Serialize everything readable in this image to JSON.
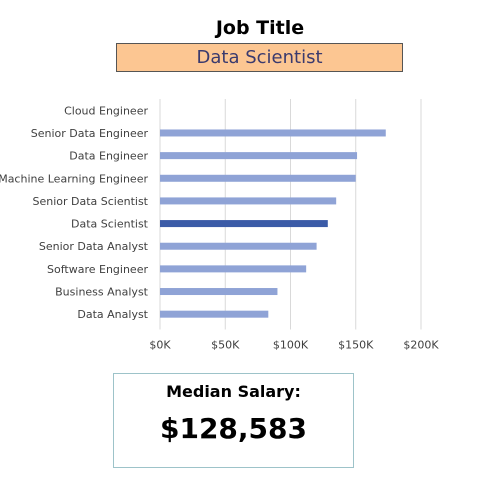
{
  "header": {
    "title": "Job Title",
    "selected_job": "Data Scientist"
  },
  "colors": {
    "selector_fill": "#fcc692",
    "bar_default": "#8fa3d6",
    "bar_highlight": "#3b5ba7"
  },
  "chart_data": {
    "type": "bar",
    "orientation": "horizontal",
    "categories": [
      "Cloud Engineer",
      "Senior Data Engineer",
      "Data Engineer",
      "Machine Learning Engineer",
      "Senior Data Scientist",
      "Data Scientist",
      "Senior Data Analyst",
      "Software Engineer",
      "Business Analyst",
      "Data Analyst"
    ],
    "values": [
      null,
      173000,
      151000,
      150000,
      135000,
      128583,
      120000,
      112000,
      90000,
      83000
    ],
    "highlight": "Data Scientist",
    "x_ticks": [
      "$0K",
      "$50K",
      "$100K",
      "$150K",
      "$200K"
    ],
    "xlim": [
      0,
      200000
    ],
    "grid": "vertical"
  },
  "summary": {
    "label": "Median Salary:",
    "value": "$128,583"
  }
}
